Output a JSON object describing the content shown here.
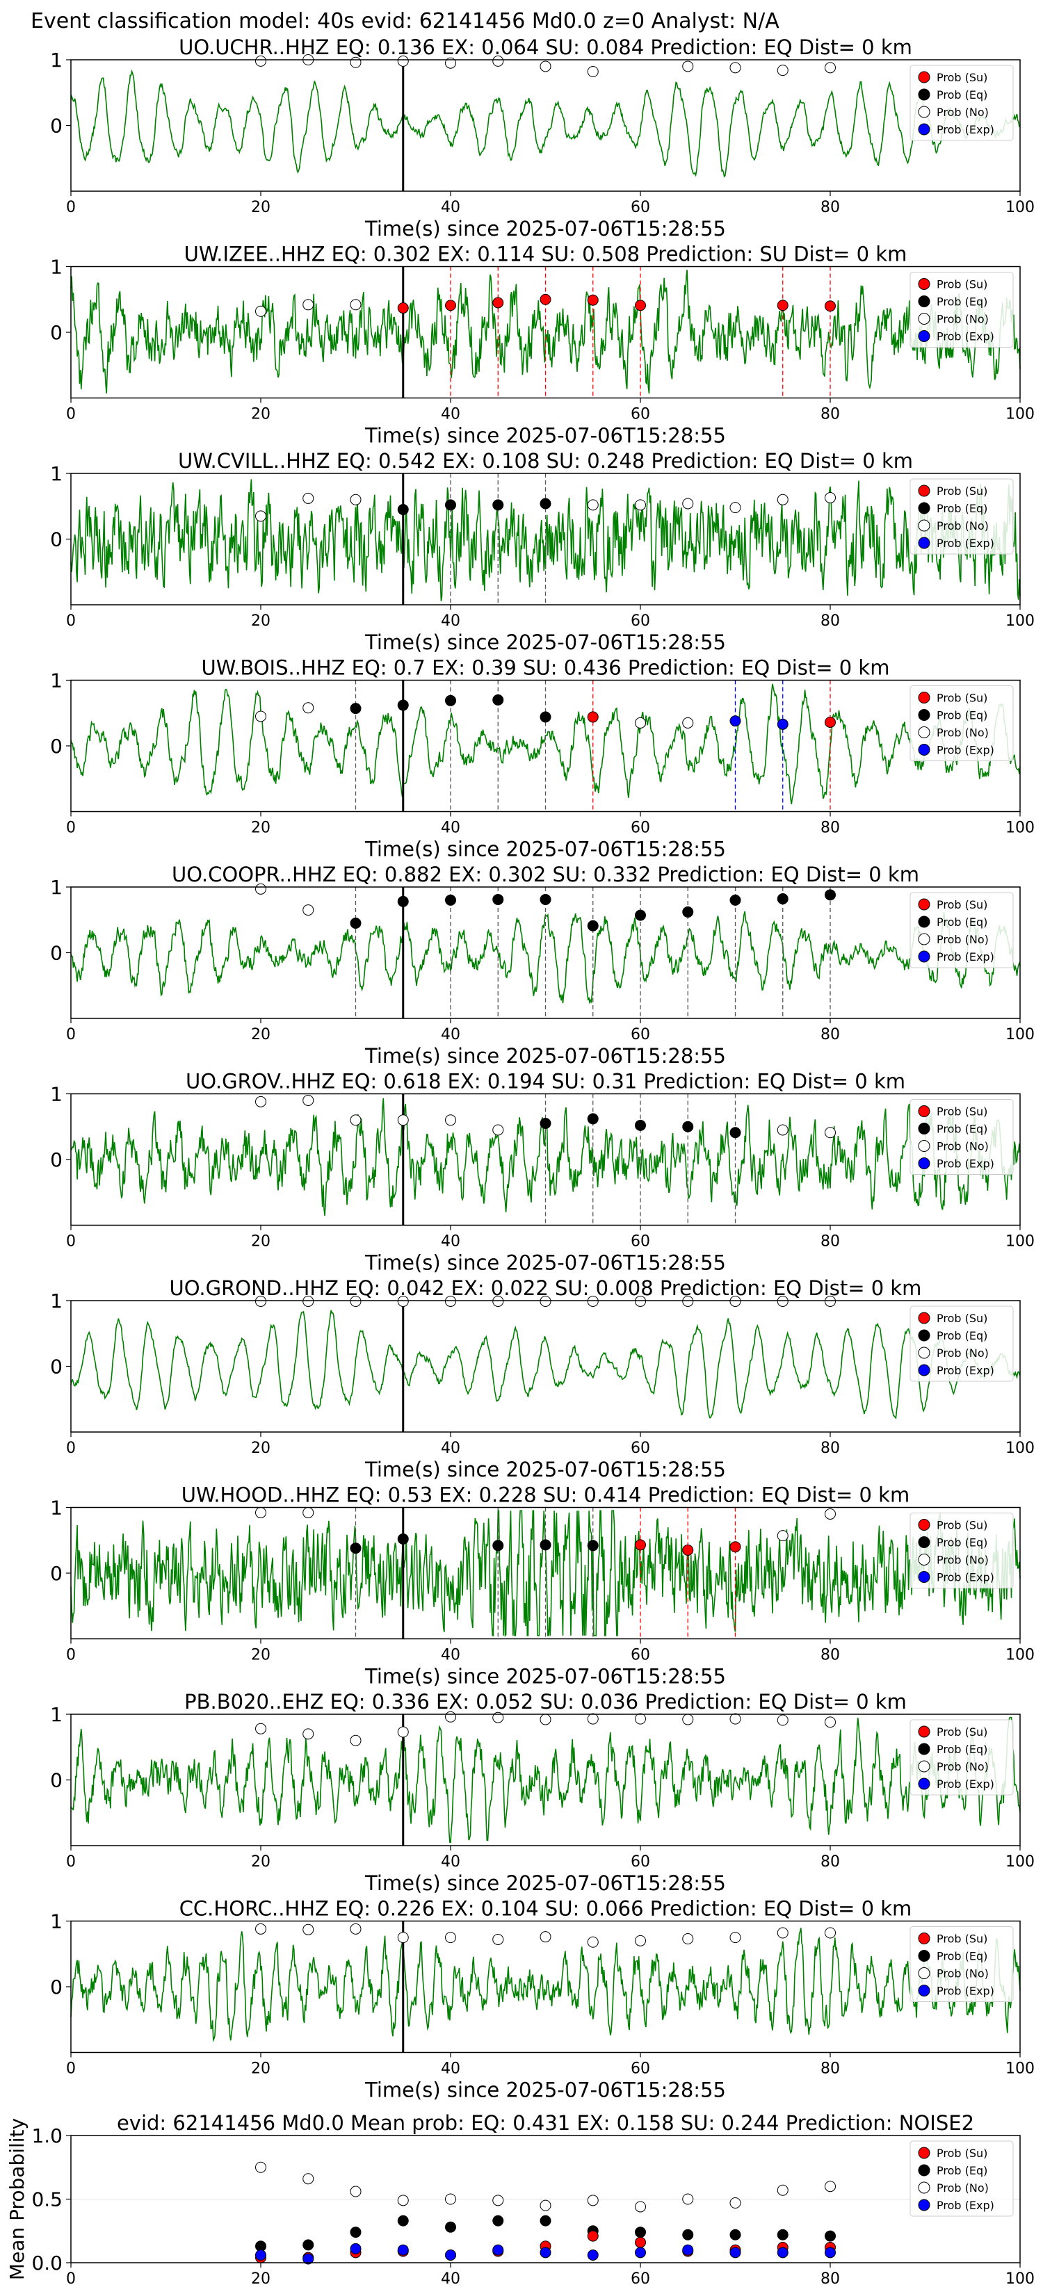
{
  "suptitle": "Event classification model: 40s evid: 62141456 Md0.0 z=0 Analyst: N/A",
  "colors": {
    "trace": "#008000",
    "su": "#ff0000",
    "eq": "#000000",
    "no": "#ffffff",
    "exp": "#0000ff",
    "pick_line": "#000000"
  },
  "legend": [
    "Prob (Su)",
    "Prob (Eq)",
    "Prob (No)",
    "Prob (Exp)"
  ],
  "chart_data": [
    {
      "type": "line",
      "title": "UO.UCHR..HHZ   EQ: 0.136  EX: 0.064  SU: 0.084   Prediction: EQ    Dist= 0 km",
      "xlabel": "Time(s) since 2025-07-06T15:28:55",
      "xlim": [
        0,
        100
      ],
      "xticks": [
        0,
        20,
        40,
        60,
        80,
        100
      ],
      "ylim": [
        -1,
        1
      ],
      "yticks": [
        0,
        1
      ],
      "pick_time": 35,
      "legend_position": "top-right",
      "waveform": {
        "color": "#008000",
        "period": 3.2,
        "noise": 0.06,
        "amplitude": 0.55
      },
      "points": [
        {
          "t": 20,
          "p": 0.98,
          "cls": "no"
        },
        {
          "t": 25,
          "p": 1.0,
          "cls": "no"
        },
        {
          "t": 30,
          "p": 0.96,
          "cls": "no"
        },
        {
          "t": 35,
          "p": 0.98,
          "cls": "no"
        },
        {
          "t": 40,
          "p": 0.95,
          "cls": "no"
        },
        {
          "t": 45,
          "p": 0.98,
          "cls": "no"
        },
        {
          "t": 50,
          "p": 0.9,
          "cls": "no"
        },
        {
          "t": 55,
          "p": 0.82,
          "cls": "no"
        },
        {
          "t": 65,
          "p": 0.9,
          "cls": "no"
        },
        {
          "t": 70,
          "p": 0.88,
          "cls": "no"
        },
        {
          "t": 75,
          "p": 0.84,
          "cls": "no"
        },
        {
          "t": 80,
          "p": 0.88,
          "cls": "no"
        }
      ]
    },
    {
      "type": "line",
      "title": "UW.IZEE..HHZ   EQ: 0.302  EX: 0.114  SU: 0.508   Prediction: SU    Dist= 0 km",
      "xlabel": "Time(s) since 2025-07-06T15:28:55",
      "xlim": [
        0,
        100
      ],
      "xticks": [
        0,
        20,
        40,
        60,
        80,
        100
      ],
      "ylim": [
        -1,
        1
      ],
      "yticks": [
        0,
        1
      ],
      "pick_time": 35,
      "legend_position": "top-right",
      "waveform": {
        "color": "#008000",
        "period": 2.6,
        "noise": 0.35,
        "amplitude": 0.45
      },
      "points": [
        {
          "t": 20,
          "p": 0.32,
          "cls": "no"
        },
        {
          "t": 25,
          "p": 0.42,
          "cls": "no"
        },
        {
          "t": 30,
          "p": 0.42,
          "cls": "no"
        },
        {
          "t": 35,
          "p": 0.37,
          "cls": "su"
        },
        {
          "t": 40,
          "p": 0.41,
          "cls": "su"
        },
        {
          "t": 45,
          "p": 0.45,
          "cls": "su"
        },
        {
          "t": 50,
          "p": 0.5,
          "cls": "su"
        },
        {
          "t": 55,
          "p": 0.49,
          "cls": "su"
        },
        {
          "t": 60,
          "p": 0.41,
          "cls": "su"
        },
        {
          "t": 75,
          "p": 0.41,
          "cls": "su"
        },
        {
          "t": 80,
          "p": 0.4,
          "cls": "su"
        }
      ]
    },
    {
      "type": "line",
      "title": "UW.CVILL..HHZ   EQ: 0.542  EX: 0.108  SU: 0.248   Prediction: EQ    Dist= 0 km",
      "xlabel": "Time(s) since 2025-07-06T15:28:55",
      "xlim": [
        0,
        100
      ],
      "xticks": [
        0,
        20,
        40,
        60,
        80,
        100
      ],
      "ylim": [
        -1,
        1
      ],
      "yticks": [
        0,
        1
      ],
      "pick_time": 35,
      "legend_position": "top-right",
      "waveform": {
        "color": "#008000",
        "period": 1.6,
        "noise": 0.55,
        "amplitude": 0.25
      },
      "points": [
        {
          "t": 20,
          "p": 0.35,
          "cls": "no"
        },
        {
          "t": 25,
          "p": 0.62,
          "cls": "no"
        },
        {
          "t": 30,
          "p": 0.6,
          "cls": "no"
        },
        {
          "t": 35,
          "p": 0.45,
          "cls": "eq"
        },
        {
          "t": 40,
          "p": 0.52,
          "cls": "eq"
        },
        {
          "t": 45,
          "p": 0.52,
          "cls": "eq"
        },
        {
          "t": 50,
          "p": 0.54,
          "cls": "eq"
        },
        {
          "t": 55,
          "p": 0.52,
          "cls": "no"
        },
        {
          "t": 60,
          "p": 0.52,
          "cls": "no"
        },
        {
          "t": 65,
          "p": 0.54,
          "cls": "no"
        },
        {
          "t": 70,
          "p": 0.48,
          "cls": "no"
        },
        {
          "t": 75,
          "p": 0.6,
          "cls": "no"
        },
        {
          "t": 80,
          "p": 0.63,
          "cls": "no"
        }
      ]
    },
    {
      "type": "line",
      "title": "UW.BOIS..HHZ   EQ: 0.7  EX: 0.39  SU: 0.436   Prediction: EQ    Dist= 0 km",
      "xlabel": "Time(s) since 2025-07-06T15:28:55",
      "xlim": [
        0,
        100
      ],
      "xticks": [
        0,
        20,
        40,
        60,
        80,
        100
      ],
      "ylim": [
        -1,
        1
      ],
      "yticks": [
        0,
        1
      ],
      "pick_time": 35,
      "legend_position": "top-right",
      "waveform": {
        "color": "#008000",
        "period": 3.4,
        "noise": 0.12,
        "amplitude": 0.6
      },
      "points": [
        {
          "t": 20,
          "p": 0.45,
          "cls": "no"
        },
        {
          "t": 25,
          "p": 0.58,
          "cls": "no"
        },
        {
          "t": 30,
          "p": 0.57,
          "cls": "eq"
        },
        {
          "t": 35,
          "p": 0.62,
          "cls": "eq"
        },
        {
          "t": 40,
          "p": 0.69,
          "cls": "eq"
        },
        {
          "t": 45,
          "p": 0.7,
          "cls": "eq"
        },
        {
          "t": 50,
          "p": 0.44,
          "cls": "eq"
        },
        {
          "t": 55,
          "p": 0.44,
          "cls": "su"
        },
        {
          "t": 60,
          "p": 0.35,
          "cls": "no"
        },
        {
          "t": 65,
          "p": 0.35,
          "cls": "no"
        },
        {
          "t": 70,
          "p": 0.38,
          "cls": "exp"
        },
        {
          "t": 75,
          "p": 0.33,
          "cls": "exp"
        },
        {
          "t": 80,
          "p": 0.36,
          "cls": "su"
        }
      ]
    },
    {
      "type": "line",
      "title": "UO.COOPR..HHZ   EQ: 0.882  EX: 0.302  SU: 0.332   Prediction: EQ    Dist= 0 km",
      "xlabel": "Time(s) since 2025-07-06T15:28:55",
      "xlim": [
        0,
        100
      ],
      "xticks": [
        0,
        20,
        40,
        60,
        80,
        100
      ],
      "ylim": [
        -1,
        1
      ],
      "yticks": [
        0,
        1
      ],
      "pick_time": 35,
      "legend_position": "top-right",
      "waveform": {
        "color": "#008000",
        "period": 3.0,
        "noise": 0.12,
        "amplitude": 0.5
      },
      "points": [
        {
          "t": 20,
          "p": 0.97,
          "cls": "no"
        },
        {
          "t": 25,
          "p": 0.65,
          "cls": "no"
        },
        {
          "t": 30,
          "p": 0.45,
          "cls": "eq"
        },
        {
          "t": 35,
          "p": 0.78,
          "cls": "eq"
        },
        {
          "t": 40,
          "p": 0.8,
          "cls": "eq"
        },
        {
          "t": 45,
          "p": 0.81,
          "cls": "eq"
        },
        {
          "t": 50,
          "p": 0.81,
          "cls": "eq"
        },
        {
          "t": 55,
          "p": 0.41,
          "cls": "eq"
        },
        {
          "t": 60,
          "p": 0.57,
          "cls": "eq"
        },
        {
          "t": 65,
          "p": 0.62,
          "cls": "eq"
        },
        {
          "t": 70,
          "p": 0.8,
          "cls": "eq"
        },
        {
          "t": 75,
          "p": 0.82,
          "cls": "eq"
        },
        {
          "t": 80,
          "p": 0.88,
          "cls": "eq"
        }
      ]
    },
    {
      "type": "line",
      "title": "UO.GROV..HHZ   EQ: 0.618  EX: 0.194  SU: 0.31   Prediction: EQ    Dist= 0 km",
      "xlabel": "Time(s) since 2025-07-06T15:28:55",
      "xlim": [
        0,
        100
      ],
      "xticks": [
        0,
        20,
        40,
        60,
        80,
        100
      ],
      "ylim": [
        -1,
        1
      ],
      "yticks": [
        0,
        1
      ],
      "pick_time": 35,
      "legend_position": "top-right",
      "waveform": {
        "color": "#008000",
        "period": 2.4,
        "noise": 0.3,
        "amplitude": 0.5
      },
      "points": [
        {
          "t": 20,
          "p": 0.88,
          "cls": "no"
        },
        {
          "t": 25,
          "p": 0.9,
          "cls": "no"
        },
        {
          "t": 30,
          "p": 0.6,
          "cls": "no"
        },
        {
          "t": 35,
          "p": 0.6,
          "cls": "no"
        },
        {
          "t": 40,
          "p": 0.6,
          "cls": "no"
        },
        {
          "t": 45,
          "p": 0.45,
          "cls": "no"
        },
        {
          "t": 50,
          "p": 0.55,
          "cls": "eq"
        },
        {
          "t": 55,
          "p": 0.62,
          "cls": "eq"
        },
        {
          "t": 60,
          "p": 0.52,
          "cls": "eq"
        },
        {
          "t": 65,
          "p": 0.5,
          "cls": "eq"
        },
        {
          "t": 70,
          "p": 0.41,
          "cls": "eq"
        },
        {
          "t": 75,
          "p": 0.45,
          "cls": "no"
        },
        {
          "t": 80,
          "p": 0.41,
          "cls": "no"
        }
      ]
    },
    {
      "type": "line",
      "title": "UO.GROND..HHZ   EQ: 0.042  EX: 0.022  SU: 0.008   Prediction: EQ    Dist= 0 km",
      "xlabel": "Time(s) since 2025-07-06T15:28:55",
      "xlim": [
        0,
        100
      ],
      "xticks": [
        0,
        20,
        40,
        60,
        80,
        100
      ],
      "ylim": [
        -1,
        1
      ],
      "yticks": [
        0,
        1
      ],
      "pick_time": 35,
      "legend_position": "top-right",
      "waveform": {
        "color": "#008000",
        "period": 3.2,
        "noise": 0.05,
        "amplitude": 0.6
      },
      "points": [
        {
          "t": 20,
          "p": 0.99,
          "cls": "no"
        },
        {
          "t": 25,
          "p": 0.99,
          "cls": "no"
        },
        {
          "t": 30,
          "p": 0.99,
          "cls": "no"
        },
        {
          "t": 35,
          "p": 0.99,
          "cls": "no"
        },
        {
          "t": 40,
          "p": 0.99,
          "cls": "no"
        },
        {
          "t": 45,
          "p": 0.99,
          "cls": "no"
        },
        {
          "t": 50,
          "p": 0.99,
          "cls": "no"
        },
        {
          "t": 55,
          "p": 0.99,
          "cls": "no"
        },
        {
          "t": 60,
          "p": 0.99,
          "cls": "no"
        },
        {
          "t": 65,
          "p": 0.99,
          "cls": "no"
        },
        {
          "t": 70,
          "p": 0.99,
          "cls": "no"
        },
        {
          "t": 75,
          "p": 0.99,
          "cls": "no"
        },
        {
          "t": 80,
          "p": 0.99,
          "cls": "no"
        }
      ]
    },
    {
      "type": "line",
      "title": "UW.HOOD..HHZ   EQ: 0.53  EX: 0.228  SU: 0.414   Prediction: EQ    Dist= 0 km",
      "xlabel": "Time(s) since 2025-07-06T15:28:55",
      "xlim": [
        0,
        100
      ],
      "xticks": [
        0,
        20,
        40,
        60,
        80,
        100
      ],
      "ylim": [
        -1,
        1
      ],
      "yticks": [
        0,
        1
      ],
      "pick_time": 35,
      "legend_position": "top-right",
      "waveform": {
        "color": "#008000",
        "period": 1.2,
        "noise": 0.6,
        "amplitude": 0.12,
        "burst": [
          44,
          58,
          0.85
        ]
      },
      "points": [
        {
          "t": 20,
          "p": 0.92,
          "cls": "no"
        },
        {
          "t": 25,
          "p": 0.92,
          "cls": "no"
        },
        {
          "t": 30,
          "p": 0.38,
          "cls": "eq"
        },
        {
          "t": 35,
          "p": 0.52,
          "cls": "eq"
        },
        {
          "t": 45,
          "p": 0.42,
          "cls": "eq"
        },
        {
          "t": 50,
          "p": 0.43,
          "cls": "eq"
        },
        {
          "t": 55,
          "p": 0.42,
          "cls": "eq"
        },
        {
          "t": 60,
          "p": 0.43,
          "cls": "su"
        },
        {
          "t": 65,
          "p": 0.35,
          "cls": "su"
        },
        {
          "t": 70,
          "p": 0.4,
          "cls": "su"
        },
        {
          "t": 75,
          "p": 0.57,
          "cls": "no"
        },
        {
          "t": 80,
          "p": 0.9,
          "cls": "no"
        }
      ]
    },
    {
      "type": "line",
      "title": "PB.B020..EHZ   EQ: 0.336  EX: 0.052  SU: 0.036   Prediction: EQ    Dist= 0 km",
      "xlabel": "Time(s) since 2025-07-06T15:28:55",
      "xlim": [
        0,
        100
      ],
      "xticks": [
        0,
        20,
        40,
        60,
        80,
        100
      ],
      "ylim": [
        -1,
        1
      ],
      "yticks": [
        0,
        1
      ],
      "pick_time": 35,
      "legend_position": "top-right",
      "waveform": {
        "color": "#008000",
        "period": 2.0,
        "noise": 0.25,
        "amplitude": 0.55
      },
      "points": [
        {
          "t": 20,
          "p": 0.78,
          "cls": "no"
        },
        {
          "t": 25,
          "p": 0.7,
          "cls": "no"
        },
        {
          "t": 30,
          "p": 0.6,
          "cls": "no"
        },
        {
          "t": 35,
          "p": 0.73,
          "cls": "no"
        },
        {
          "t": 40,
          "p": 0.96,
          "cls": "no"
        },
        {
          "t": 45,
          "p": 0.95,
          "cls": "no"
        },
        {
          "t": 50,
          "p": 0.92,
          "cls": "no"
        },
        {
          "t": 55,
          "p": 0.93,
          "cls": "no"
        },
        {
          "t": 60,
          "p": 0.93,
          "cls": "no"
        },
        {
          "t": 65,
          "p": 0.92,
          "cls": "no"
        },
        {
          "t": 70,
          "p": 0.93,
          "cls": "no"
        },
        {
          "t": 75,
          "p": 0.91,
          "cls": "no"
        },
        {
          "t": 80,
          "p": 0.88,
          "cls": "no"
        }
      ]
    },
    {
      "type": "line",
      "title": "CC.HORC..HHZ   EQ: 0.226  EX: 0.104  SU: 0.066   Prediction: EQ    Dist= 0 km",
      "xlabel": "Time(s) since 2025-07-06T15:28:55",
      "xlim": [
        0,
        100
      ],
      "xticks": [
        0,
        20,
        40,
        60,
        80,
        100
      ],
      "ylim": [
        -1,
        1
      ],
      "yticks": [
        0,
        1
      ],
      "pick_time": 35,
      "legend_position": "top-right",
      "waveform": {
        "color": "#008000",
        "period": 1.9,
        "noise": 0.22,
        "amplitude": 0.5
      },
      "points": [
        {
          "t": 20,
          "p": 0.88,
          "cls": "no"
        },
        {
          "t": 25,
          "p": 0.87,
          "cls": "no"
        },
        {
          "t": 30,
          "p": 0.88,
          "cls": "no"
        },
        {
          "t": 35,
          "p": 0.75,
          "cls": "no"
        },
        {
          "t": 40,
          "p": 0.75,
          "cls": "no"
        },
        {
          "t": 45,
          "p": 0.72,
          "cls": "no"
        },
        {
          "t": 50,
          "p": 0.76,
          "cls": "no"
        },
        {
          "t": 55,
          "p": 0.68,
          "cls": "no"
        },
        {
          "t": 60,
          "p": 0.7,
          "cls": "no"
        },
        {
          "t": 65,
          "p": 0.73,
          "cls": "no"
        },
        {
          "t": 70,
          "p": 0.75,
          "cls": "no"
        },
        {
          "t": 75,
          "p": 0.82,
          "cls": "no"
        },
        {
          "t": 80,
          "p": 0.82,
          "cls": "no"
        }
      ]
    },
    {
      "type": "scatter",
      "title": "evid: 62141456  Md0.0   Mean prob:   EQ: 0.431  EX: 0.158  SU: 0.244   Prediction: NOISE2",
      "xlabel": "",
      "ylabel": "Mean Probability",
      "xlim": [
        0,
        100
      ],
      "xticks": [
        0,
        20,
        40,
        60,
        80,
        100
      ],
      "ylim": [
        0,
        1
      ],
      "yticks": [
        0.0,
        0.5,
        1.0
      ],
      "ytick_labels": [
        "0.0",
        "0.5",
        "1.0"
      ],
      "legend_position": "top-right",
      "x": [
        20,
        25,
        30,
        35,
        40,
        45,
        50,
        55,
        60,
        65,
        70,
        75,
        80
      ],
      "series": [
        {
          "name": "Prob (No)",
          "cls": "no",
          "values": [
            0.75,
            0.66,
            0.56,
            0.49,
            0.5,
            0.49,
            0.45,
            0.49,
            0.44,
            0.5,
            0.47,
            0.57,
            0.6
          ]
        },
        {
          "name": "Prob (Eq)",
          "cls": "eq",
          "values": [
            0.13,
            0.14,
            0.24,
            0.33,
            0.28,
            0.33,
            0.33,
            0.25,
            0.24,
            0.22,
            0.22,
            0.22,
            0.21
          ]
        },
        {
          "name": "Prob (Su)",
          "cls": "su",
          "values": [
            0.04,
            0.04,
            0.08,
            0.09,
            0.06,
            0.09,
            0.13,
            0.21,
            0.16,
            0.09,
            0.1,
            0.12,
            0.12
          ]
        },
        {
          "name": "Prob (Exp)",
          "cls": "exp",
          "values": [
            0.06,
            0.03,
            0.11,
            0.1,
            0.06,
            0.1,
            0.08,
            0.06,
            0.08,
            0.1,
            0.08,
            0.08,
            0.08
          ]
        }
      ]
    }
  ]
}
